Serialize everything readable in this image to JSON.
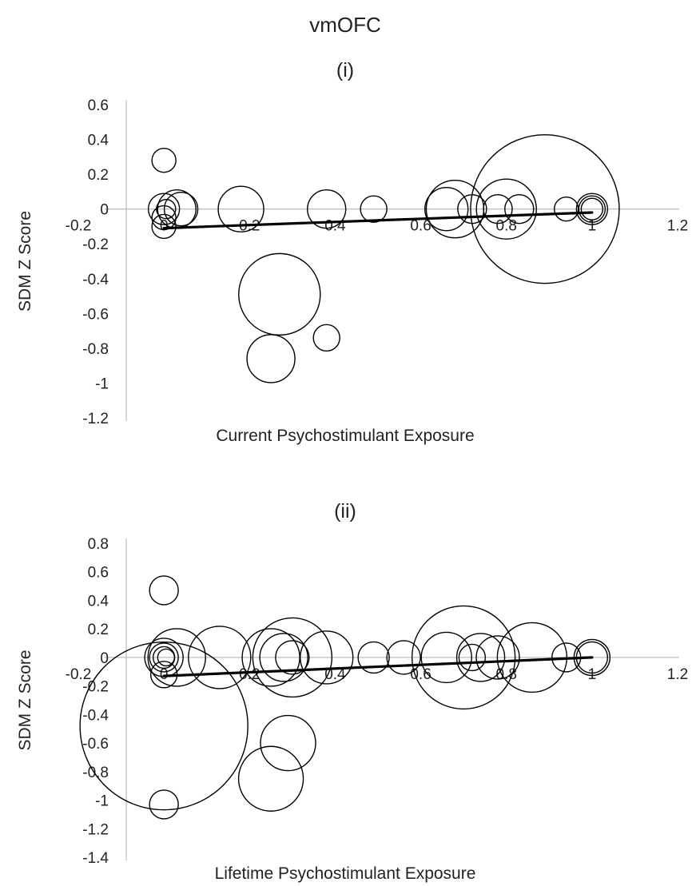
{
  "figure": {
    "title": "vmOFC"
  },
  "chart_data": [
    {
      "type": "bubble",
      "title": "(i)",
      "xlabel": "Current Psychostimulant Exposure",
      "ylabel": "SDM Z Score",
      "xlim": [
        -0.2,
        1.2
      ],
      "ylim": [
        -1.2,
        0.6
      ],
      "x_ticks": [
        "-0.2",
        "0",
        "0.2",
        "0.4",
        "0.6",
        "0.8",
        "1",
        "1.2"
      ],
      "y_ticks": [
        "0.6",
        "0.4",
        "0.2",
        "0",
        "-0.2",
        "-0.4",
        "-0.6",
        "-0.8",
        "-1",
        "-1.2"
      ],
      "grid": false,
      "points": [
        {
          "x": 0.0,
          "y": 0.28,
          "r": 1.0
        },
        {
          "x": 0.0,
          "y": 0.0,
          "r": 1.3
        },
        {
          "x": 0.005,
          "y": 0.0,
          "r": 0.8
        },
        {
          "x": 0.0,
          "y": -0.05,
          "r": 1.0
        },
        {
          "x": 0.0,
          "y": -0.1,
          "r": 1.0
        },
        {
          "x": 0.03,
          "y": 0.0,
          "r": 1.6
        },
        {
          "x": 0.04,
          "y": 0.0,
          "r": 1.4
        },
        {
          "x": 0.18,
          "y": 0.0,
          "r": 1.9
        },
        {
          "x": 0.27,
          "y": -0.49,
          "r": 3.4
        },
        {
          "x": 0.25,
          "y": -0.86,
          "r": 2.0
        },
        {
          "x": 0.38,
          "y": 0.0,
          "r": 1.6
        },
        {
          "x": 0.38,
          "y": -0.74,
          "r": 1.1
        },
        {
          "x": 0.49,
          "y": 0.0,
          "r": 1.1
        },
        {
          "x": 0.66,
          "y": 0.0,
          "r": 1.8
        },
        {
          "x": 0.68,
          "y": 0.0,
          "r": 2.4
        },
        {
          "x": 0.72,
          "y": 0.0,
          "r": 1.2
        },
        {
          "x": 0.78,
          "y": 0.0,
          "r": 1.2
        },
        {
          "x": 0.8,
          "y": 0.0,
          "r": 2.5
        },
        {
          "x": 0.83,
          "y": 0.0,
          "r": 1.2
        },
        {
          "x": 0.89,
          "y": 0.0,
          "r": 6.2
        },
        {
          "x": 0.94,
          "y": 0.0,
          "r": 1.0
        },
        {
          "x": 1.0,
          "y": 0.0,
          "r": 1.3
        },
        {
          "x": 1.0,
          "y": 0.0,
          "r": 1.1
        },
        {
          "x": 1.0,
          "y": 0.0,
          "r": 0.9
        }
      ],
      "trendline": {
        "x": [
          0.0,
          1.0
        ],
        "y": [
          -0.11,
          -0.02
        ]
      }
    },
    {
      "type": "bubble",
      "title": "(ii)",
      "xlabel": "Lifetime Psychostimulant Exposure",
      "ylabel": "SDM Z Score",
      "xlim": [
        -0.2,
        1.2
      ],
      "ylim": [
        -1.4,
        0.8
      ],
      "x_ticks": [
        "-0.2",
        "0",
        "0.2",
        "0.4",
        "0.6",
        "0.8",
        "1",
        "1.2"
      ],
      "y_ticks": [
        "0.8",
        "0.6",
        "0.4",
        "0.2",
        "0",
        "-0.2",
        "-0.4",
        "-0.6",
        "-0.8",
        "-1",
        "-1.2",
        "-1.4"
      ],
      "grid": false,
      "points": [
        {
          "x": 0.0,
          "y": 0.47,
          "r": 1.2
        },
        {
          "x": 0.0,
          "y": 0.0,
          "r": 1.2
        },
        {
          "x": 0.0,
          "y": 0.0,
          "r": 1.6
        },
        {
          "x": 0.0,
          "y": 0.0,
          "r": 0.9
        },
        {
          "x": 0.005,
          "y": 0.0,
          "r": 0.7
        },
        {
          "x": 0.0,
          "y": -0.12,
          "r": 1.1
        },
        {
          "x": 0.0,
          "y": -0.48,
          "r": 7.0
        },
        {
          "x": 0.0,
          "y": -1.03,
          "r": 1.2
        },
        {
          "x": 0.03,
          "y": 0.0,
          "r": 2.4
        },
        {
          "x": 0.13,
          "y": 0.0,
          "r": 2.6
        },
        {
          "x": 0.25,
          "y": 0.0,
          "r": 2.4
        },
        {
          "x": 0.28,
          "y": 0.0,
          "r": 2.0
        },
        {
          "x": 0.3,
          "y": 0.0,
          "r": 3.3
        },
        {
          "x": 0.3,
          "y": 0.0,
          "r": 1.4
        },
        {
          "x": 0.38,
          "y": 0.0,
          "r": 2.2
        },
        {
          "x": 0.25,
          "y": -0.85,
          "r": 2.7
        },
        {
          "x": 0.29,
          "y": -0.6,
          "r": 2.3
        },
        {
          "x": 0.49,
          "y": 0.0,
          "r": 1.3
        },
        {
          "x": 0.56,
          "y": 0.0,
          "r": 1.4
        },
        {
          "x": 0.66,
          "y": 0.0,
          "r": 2.1
        },
        {
          "x": 0.7,
          "y": 0.0,
          "r": 4.3
        },
        {
          "x": 0.72,
          "y": 0.0,
          "r": 1.1
        },
        {
          "x": 0.74,
          "y": 0.0,
          "r": 2.0
        },
        {
          "x": 0.78,
          "y": 0.0,
          "r": 1.8
        },
        {
          "x": 0.86,
          "y": 0.0,
          "r": 2.9
        },
        {
          "x": 0.94,
          "y": 0.0,
          "r": 1.2
        },
        {
          "x": 1.0,
          "y": 0.0,
          "r": 1.5
        },
        {
          "x": 1.0,
          "y": 0.0,
          "r": 1.3
        }
      ],
      "trendline": {
        "x": [
          0.0,
          1.0
        ],
        "y": [
          -0.13,
          0.0
        ]
      }
    }
  ]
}
